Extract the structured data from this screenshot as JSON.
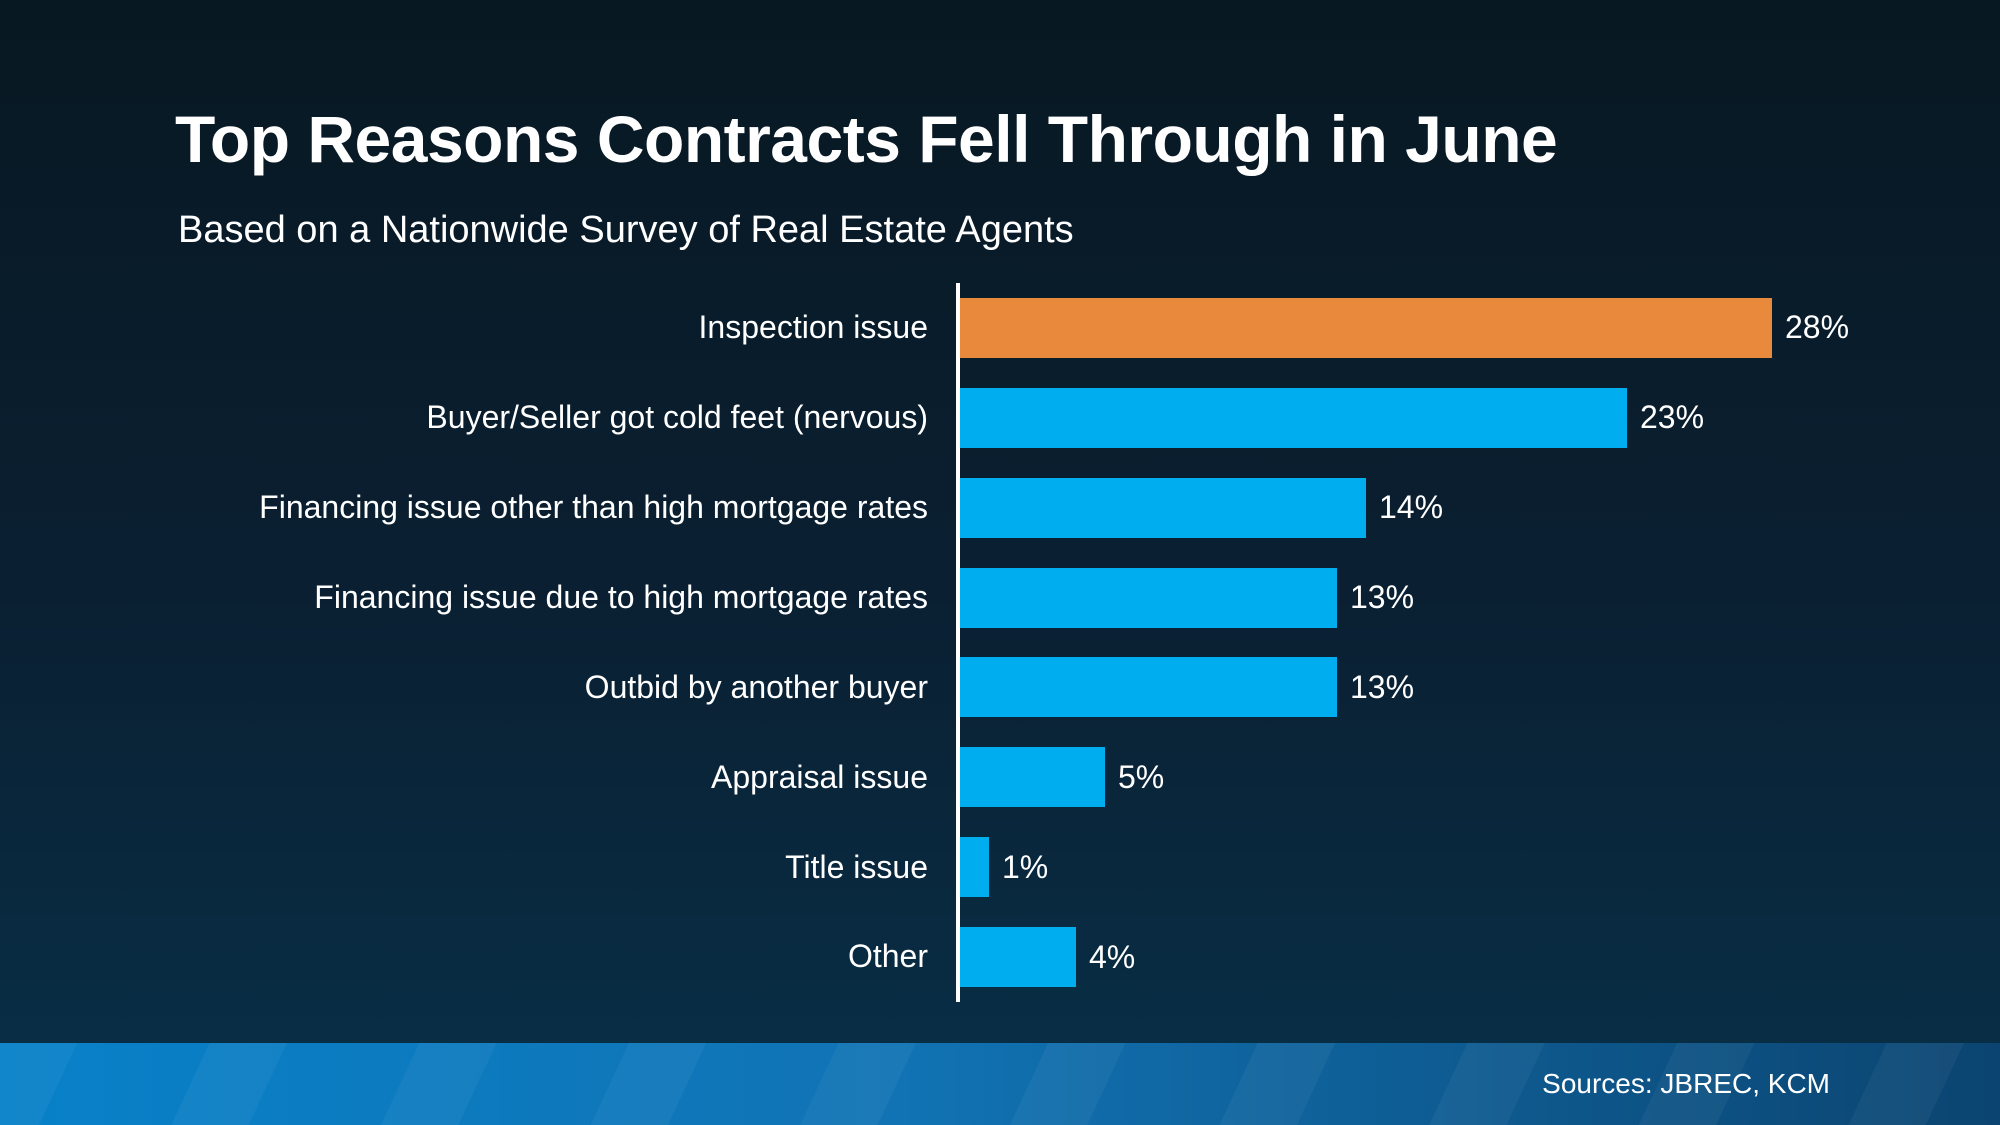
{
  "header": {
    "title": "Top Reasons Contracts Fell Through in June",
    "subtitle": "Based on a Nationwide Survey of Real Estate Agents"
  },
  "chart_data": {
    "type": "bar",
    "orientation": "horizontal",
    "title": "Top Reasons Contracts Fell Through in June",
    "subtitle": "Based on a Nationwide Survey of Real Estate Agents",
    "categories": [
      "Inspection issue",
      "Buyer/Seller got cold feet (nervous)",
      "Financing issue other than high mortgage rates",
      "Financing issue due to high mortgage rates",
      "Outbid by another buyer",
      "Appraisal issue",
      "Title issue",
      "Other"
    ],
    "values": [
      28,
      23,
      14,
      13,
      13,
      5,
      1,
      4
    ],
    "value_labels": [
      "28%",
      "23%",
      "14%",
      "13%",
      "13%",
      "5%",
      "1%",
      "4%"
    ],
    "unit": "percent",
    "xlim": [
      0,
      30
    ],
    "grid": false,
    "legend": false,
    "highlight_index": 0,
    "colors": {
      "highlight_bar": "#E8893B",
      "bar": "#00AEEF",
      "axis_line": "#FFFFFF",
      "label_text": "#FFFFFF"
    }
  },
  "footer": {
    "sources": "Sources: JBREC, KCM"
  },
  "palette": {
    "bg_top": "#081822",
    "bg_bottom": "#083048",
    "strip_left": "#0881C9",
    "strip_right": "#0B4470",
    "text": "#FFFFFF"
  }
}
